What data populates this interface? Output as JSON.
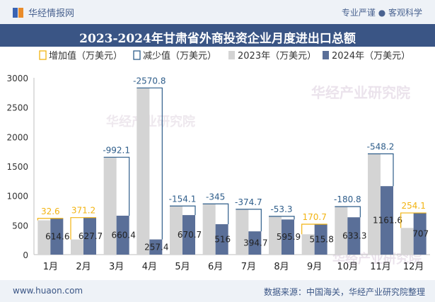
{
  "header": {
    "brand": "华经情报网",
    "tagline": "专业严谨 ● 客观科学"
  },
  "title": "2023-2024年甘肃省外商投资企业月度进出口总额",
  "footer": {
    "site": "www.huaon.com",
    "source": "数据来源：中国海关，华经产业研究院整理"
  },
  "watermark": "华经产业研究院",
  "chart_data": {
    "type": "bar",
    "categories": [
      "1月",
      "2月",
      "3月",
      "4月",
      "5月",
      "6月",
      "7月",
      "8月",
      "9月",
      "10月",
      "11月",
      "12月"
    ],
    "series": [
      {
        "name": "2023年（万美元）",
        "values": [
          582.0,
          256.5,
          1652.5,
          2828.2,
          824.8,
          861.0,
          769.4,
          649.2,
          345.1,
          814.1,
          1709.8,
          452.8
        ],
        "color": "#d4d4d4"
      },
      {
        "name": "2024年（万美元）",
        "values": [
          614.6,
          627.7,
          660.4,
          257.4,
          670.7,
          516.0,
          394.7,
          595.9,
          515.8,
          633.3,
          1161.6,
          707.0
        ],
        "color": "#5a6f98"
      }
    ],
    "change": {
      "increase_name": "增加值（万美元）",
      "decrease_name": "减少值（万美元）",
      "labels": [
        "32.6",
        "371.2",
        "-992.1",
        "-2570.8",
        "-154.1",
        "-345",
        "-374.7",
        "-53.3",
        "170.7",
        "-180.8",
        "-548.2",
        "254.1"
      ],
      "values": [
        32.6,
        371.2,
        -992.1,
        -2570.8,
        -154.1,
        -345,
        -374.7,
        -53.3,
        170.7,
        -180.8,
        -548.2,
        254.1
      ],
      "increase_color": "#f2b310",
      "decrease_color": "#2e5d8a"
    },
    "value_labels_2024": [
      "614.6",
      "627.7",
      "660.4",
      "257.4",
      "670.7",
      "516",
      "394.7",
      "595.9",
      "515.8",
      "633.3",
      "1161.6",
      "707"
    ],
    "y_ticks": [
      0,
      500,
      1000,
      1500,
      2000,
      2500,
      3000
    ],
    "ylim": [
      0,
      3000
    ],
    "legend_position": "top-left"
  }
}
